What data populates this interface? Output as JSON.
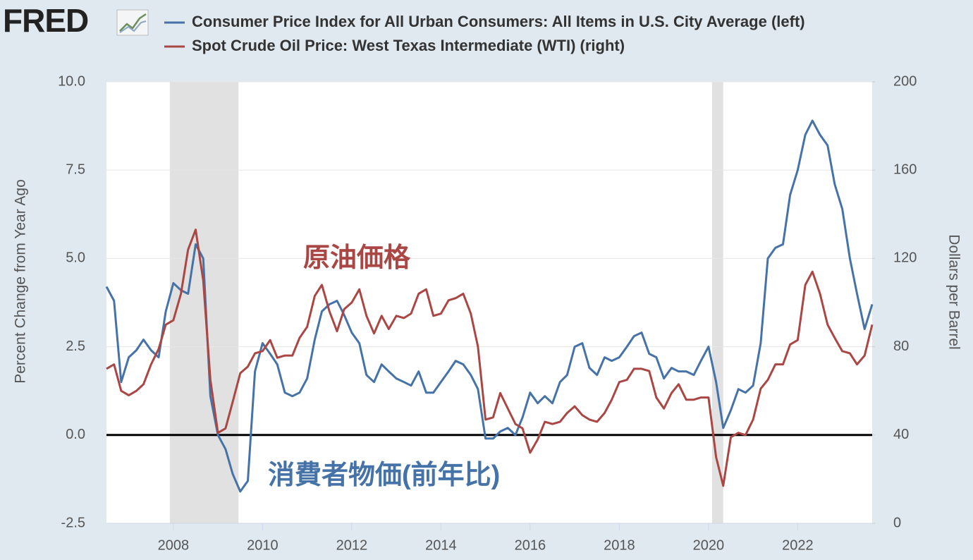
{
  "chart_data": {
    "type": "line",
    "logo": "FRED",
    "ylabel": "Percent Change from Year Ago",
    "y2label": "Dollars per Barrel",
    "annotations": [
      "原油価格",
      "消費者物価(前年比)"
    ],
    "xlim": [
      2006.5,
      2023.67
    ],
    "xticks": [
      2008,
      2010,
      2012,
      2014,
      2016,
      2018,
      2020,
      2022
    ],
    "ylim": [
      -2.5,
      10
    ],
    "yticks": [
      -2.5,
      {
        "value": 0,
        "label": "0.0"
      },
      2.5,
      {
        "value": 5,
        "label": "5.0"
      },
      7.5,
      {
        "value": 10,
        "label": "10.0"
      }
    ],
    "y2lim": [
      0,
      200
    ],
    "y2ticks": [
      0,
      40,
      80,
      120,
      160,
      200
    ],
    "grid": true,
    "recessions": [
      [
        2007.92,
        2009.46
      ],
      [
        2020.08,
        2020.33
      ]
    ],
    "x": [
      2006.5,
      2006.67,
      2006.83,
      2007,
      2007.17,
      2007.33,
      2007.5,
      2007.67,
      2007.83,
      2008,
      2008.17,
      2008.33,
      2008.5,
      2008.67,
      2008.83,
      2009,
      2009.17,
      2009.33,
      2009.5,
      2009.67,
      2009.83,
      2010,
      2010.17,
      2010.33,
      2010.5,
      2010.67,
      2010.83,
      2011,
      2011.17,
      2011.33,
      2011.5,
      2011.67,
      2011.83,
      2012,
      2012.17,
      2012.33,
      2012.5,
      2012.67,
      2012.83,
      2013,
      2013.17,
      2013.33,
      2013.5,
      2013.67,
      2013.83,
      2014,
      2014.17,
      2014.33,
      2014.5,
      2014.67,
      2014.83,
      2015,
      2015.17,
      2015.33,
      2015.5,
      2015.67,
      2015.83,
      2016,
      2016.17,
      2016.33,
      2016.5,
      2016.67,
      2016.83,
      2017,
      2017.17,
      2017.33,
      2017.5,
      2017.67,
      2017.83,
      2018,
      2018.17,
      2018.33,
      2018.5,
      2018.67,
      2018.83,
      2019,
      2019.17,
      2019.33,
      2019.5,
      2019.67,
      2019.83,
      2020,
      2020.17,
      2020.33,
      2020.5,
      2020.67,
      2020.83,
      2021,
      2021.17,
      2021.33,
      2021.5,
      2021.67,
      2021.83,
      2022,
      2022.17,
      2022.33,
      2022.5,
      2022.67,
      2022.83,
      2023,
      2023.17,
      2023.33,
      2023.5,
      2023.67
    ],
    "series": [
      {
        "name": "Consumer Price Index for All Urban Consumers: All Items in U.S. City Average (left)",
        "color": "#4572a7",
        "axis": "y",
        "values": [
          4.2,
          3.8,
          1.5,
          2.2,
          2.4,
          2.7,
          2.4,
          2.2,
          3.5,
          4.3,
          4.1,
          4.0,
          5.4,
          5.0,
          1.1,
          0.0,
          -0.4,
          -1.1,
          -1.6,
          -1.3,
          1.8,
          2.6,
          2.3,
          2.0,
          1.2,
          1.1,
          1.2,
          1.6,
          2.7,
          3.5,
          3.7,
          3.8,
          3.4,
          2.9,
          2.6,
          1.7,
          1.5,
          2.0,
          1.8,
          1.6,
          1.5,
          1.4,
          1.8,
          1.2,
          1.2,
          1.5,
          1.8,
          2.1,
          2.0,
          1.7,
          1.3,
          -0.1,
          -0.1,
          0.1,
          0.2,
          0.0,
          0.5,
          1.2,
          0.9,
          1.1,
          0.9,
          1.5,
          1.7,
          2.5,
          2.6,
          1.9,
          1.7,
          2.2,
          2.1,
          2.2,
          2.5,
          2.8,
          2.9,
          2.3,
          2.2,
          1.6,
          1.9,
          1.8,
          1.8,
          1.7,
          2.1,
          2.5,
          1.5,
          0.2,
          0.7,
          1.3,
          1.2,
          1.4,
          2.6,
          5.0,
          5.3,
          5.4,
          6.8,
          7.5,
          8.5,
          8.9,
          8.5,
          8.2,
          7.1,
          6.4,
          5.0,
          4.0,
          3.0,
          3.7
        ]
      },
      {
        "name": "Spot Crude Oil Price: West Texas Intermediate (WTI) (right)",
        "color": "#aa4643",
        "axis": "y2",
        "values": [
          70,
          72,
          60,
          58,
          60,
          63,
          72,
          79,
          90,
          92,
          104,
          124,
          133,
          110,
          65,
          41,
          43,
          55,
          68,
          71,
          77,
          78,
          83,
          75,
          76,
          76,
          84,
          89,
          103,
          108,
          96,
          87,
          97,
          100,
          106,
          94,
          86,
          94,
          88,
          94,
          93,
          95,
          104,
          106,
          94,
          95,
          101,
          102,
          104,
          95,
          80,
          47,
          48,
          59,
          52,
          45,
          43,
          32,
          38,
          46,
          45,
          46,
          50,
          53,
          49,
          47,
          46,
          50,
          56,
          64,
          65,
          70,
          70,
          69,
          57,
          52,
          59,
          63,
          56,
          56,
          57,
          57,
          30,
          17,
          39,
          41,
          40,
          47,
          61,
          65,
          72,
          72,
          81,
          83,
          108,
          114,
          104,
          90,
          84,
          78,
          77,
          72,
          76,
          90
        ]
      }
    ]
  }
}
